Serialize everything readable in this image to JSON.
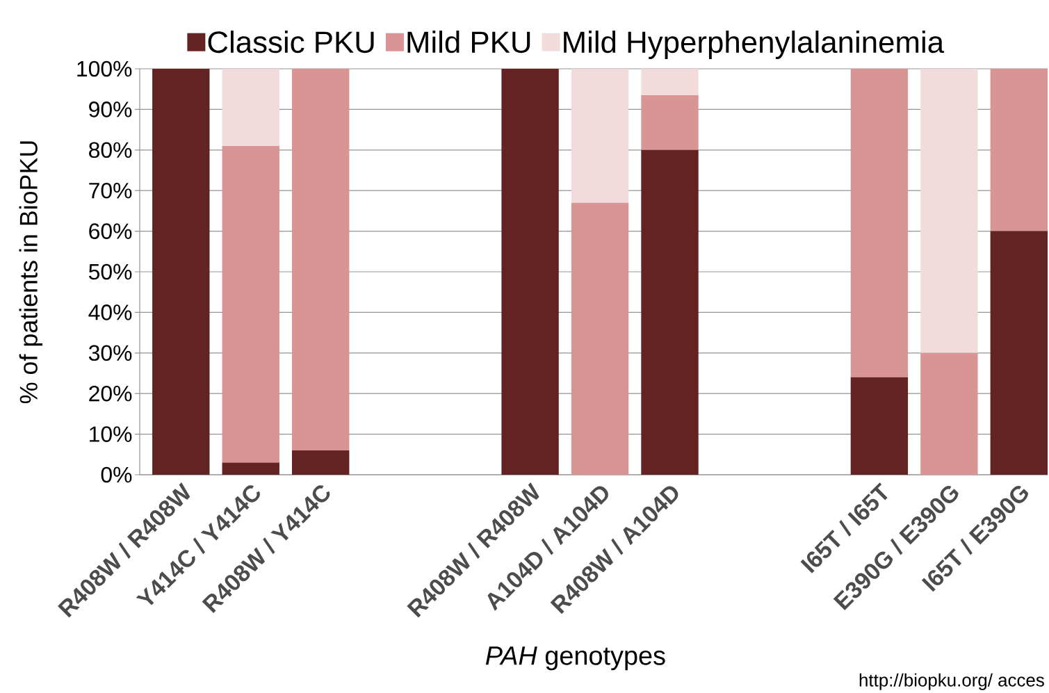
{
  "chart_data": {
    "type": "bar",
    "stacked": true,
    "categories": [
      "R408W / R408W",
      "Y414C / Y414C",
      "R408W / Y414C",
      null,
      null,
      "R408W / R408W",
      "A104D / A104D",
      "R408W / A104D",
      null,
      null,
      "I65T / I65T",
      "E390G / E390G",
      "I65T / E390G"
    ],
    "series": [
      {
        "name": "Classic PKU",
        "color": "#632323",
        "values": [
          100,
          3,
          6,
          null,
          null,
          100,
          0,
          80,
          null,
          null,
          24,
          0,
          60
        ]
      },
      {
        "name": "Mild PKU",
        "color": "#d99594",
        "values": [
          0,
          78,
          94,
          null,
          null,
          0,
          67,
          13.5,
          null,
          null,
          76,
          30,
          40
        ]
      },
      {
        "name": "Mild Hyperphenylalaninemia",
        "color": "#f2dcdb",
        "values": [
          0,
          19,
          0,
          null,
          null,
          0,
          33,
          6.5,
          null,
          null,
          0,
          70,
          0
        ]
      }
    ],
    "ylim": [
      0,
      100
    ],
    "yticks": [
      {
        "value": 0,
        "label": "0%"
      },
      {
        "value": 10,
        "label": "10%"
      },
      {
        "value": 20,
        "label": "20%"
      },
      {
        "value": 30,
        "label": "30%"
      },
      {
        "value": 40,
        "label": "40%"
      },
      {
        "value": 50,
        "label": "50%"
      },
      {
        "value": 60,
        "label": "60%"
      },
      {
        "value": 70,
        "label": "70%"
      },
      {
        "value": 80,
        "label": "80%"
      },
      {
        "value": 90,
        "label": "90%"
      },
      {
        "value": 100,
        "label": "100%"
      }
    ],
    "ylabel": "% of patients in BioPKU",
    "xlabel": "*PAH* genotypes",
    "grid": "y",
    "legend": "top",
    "annotations": [
      "http://biopku.org/ acces"
    ]
  }
}
